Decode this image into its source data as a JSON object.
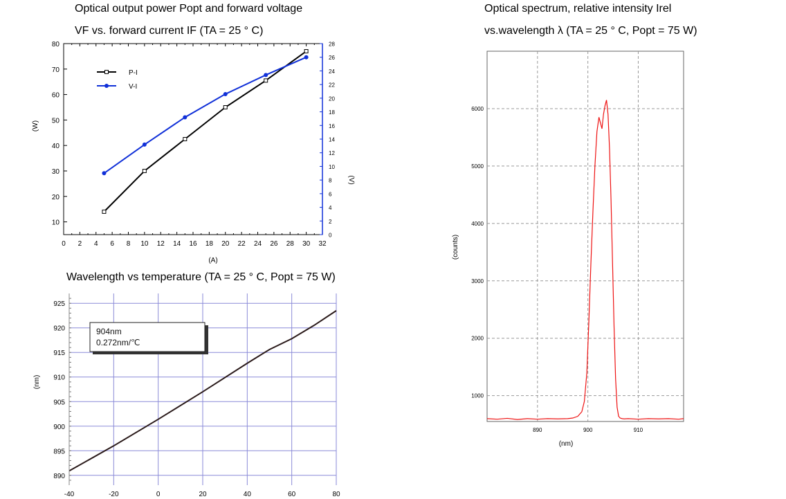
{
  "chart_data": [
    {
      "id": "pv",
      "type": "line",
      "title_line1": "Optical output power Popt and forward voltage",
      "title_line2": "VF vs. forward current IF (TA = 25 ° C)",
      "xlabel": "(A)",
      "ylabel_left": "(W)",
      "ylabel_right": "(V)",
      "xlim": [
        0,
        32
      ],
      "ylim_left": [
        5,
        80
      ],
      "ylim_right": [
        0,
        28
      ],
      "x_ticks": [
        "0",
        "2",
        "4",
        "6",
        "8",
        "10",
        "12",
        "14",
        "16",
        "18",
        "20",
        "22",
        "24",
        "26",
        "28",
        "30",
        "32"
      ],
      "y_left_ticks": [
        "10",
        "20",
        "30",
        "40",
        "50",
        "60",
        "70",
        "80"
      ],
      "y_right_ticks": [
        "0",
        "2",
        "4",
        "6",
        "8",
        "10",
        "12",
        "14",
        "16",
        "18",
        "20",
        "22",
        "24",
        "26",
        "28"
      ],
      "legend": [
        "P-I",
        "V-I"
      ],
      "series": [
        {
          "name": "P-I",
          "axis": "left",
          "color": "#000000",
          "x": [
            5,
            10,
            15,
            20,
            25,
            30
          ],
          "y": [
            14,
            30,
            42.5,
            55,
            65.5,
            77
          ]
        },
        {
          "name": "V-I",
          "axis": "right",
          "color": "#1030d8",
          "x": [
            5,
            10,
            15,
            20,
            25,
            30
          ],
          "y": [
            9.0,
            13.2,
            17.2,
            20.6,
            23.4,
            26.0
          ]
        }
      ]
    },
    {
      "id": "temp",
      "type": "line",
      "title": "Wavelength vs temperature (TA = 25 ° C, Popt = 75 W)",
      "ylabel": "(nm)",
      "xlim": [
        -40,
        80
      ],
      "ylim": [
        888,
        927
      ],
      "x_ticks": [
        "-40",
        "-20",
        "0",
        "20",
        "40",
        "60",
        "80"
      ],
      "y_ticks": [
        "890",
        "895",
        "900",
        "905",
        "910",
        "915",
        "920",
        "925"
      ],
      "annotation": [
        "904nm",
        "0.272nm/℃"
      ],
      "grid": true,
      "series": [
        {
          "color": "#2a1a1a",
          "x": [
            -40,
            -20,
            0,
            20,
            40,
            50,
            60,
            70,
            80
          ],
          "y": [
            890.9,
            896.0,
            901.4,
            907.0,
            912.8,
            915.6,
            917.8,
            920.5,
            923.5
          ]
        }
      ]
    },
    {
      "id": "spectrum",
      "type": "line",
      "title_line1": "Optical spectrum, relative intensity Irel",
      "title_line2": "vs.wavelength λ (TA = 25 ° C, Popt = 75 W)",
      "xlabel": "(nm)",
      "ylabel": "(counts)",
      "xlim": [
        880,
        919
      ],
      "ylim": [
        550,
        7000
      ],
      "x_ticks": [
        "890",
        "900",
        "910"
      ],
      "y_ticks": [
        "1000",
        "2000",
        "3000",
        "4000",
        "5000",
        "6000"
      ],
      "grid": true,
      "series": [
        {
          "color": "#ee1111",
          "x": [
            880,
            882,
            884,
            886,
            888,
            890,
            892,
            894,
            896,
            897,
            898,
            898.8,
            899.3,
            899.8,
            900.2,
            900.6,
            901.0,
            901.4,
            901.8,
            902.2,
            902.5,
            902.8,
            903.1,
            903.4,
            903.7,
            904.0,
            904.3,
            904.6,
            904.9,
            905.2,
            905.5,
            905.8,
            906.1,
            906.4,
            906.8,
            907.2,
            908,
            910,
            912,
            914,
            916,
            918,
            919
          ],
          "y": [
            600,
            590,
            605,
            585,
            600,
            590,
            600,
            595,
            600,
            610,
            640,
            720,
            900,
            1400,
            2300,
            3300,
            4200,
            5000,
            5600,
            5850,
            5750,
            5650,
            5900,
            6050,
            6150,
            5900,
            5300,
            4400,
            3300,
            2200,
            1300,
            800,
            640,
            610,
            600,
            595,
            600,
            590,
            600,
            595,
            600,
            590,
            600
          ]
        }
      ]
    }
  ]
}
